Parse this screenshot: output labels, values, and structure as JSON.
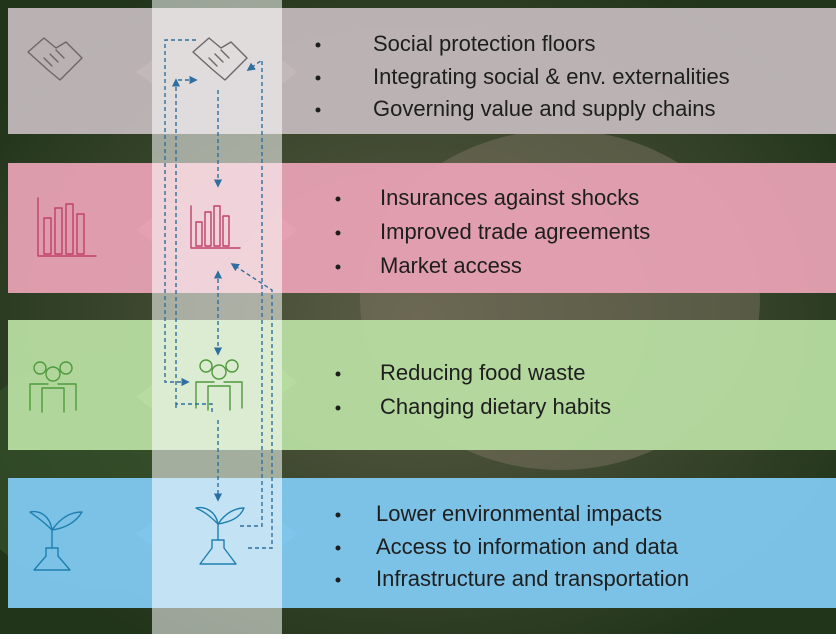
{
  "rows": [
    {
      "bullets": [
        "Social protection floors",
        "Integrating social & env. externalities",
        "Governing value and supply chains"
      ]
    },
    {
      "bullets": [
        "Insurances against shocks",
        "Improved trade agreements",
        "Market access"
      ]
    },
    {
      "bullets": [
        "Reducing food waste",
        "Changing dietary habits"
      ]
    },
    {
      "bullets": [
        "Lower environmental impacts",
        "Access to information and data",
        "Infrastructure and transportation"
      ]
    }
  ]
}
